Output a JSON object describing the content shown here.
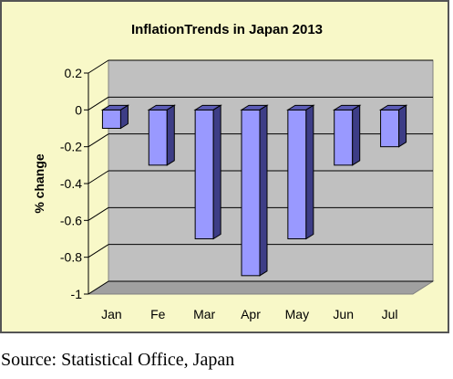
{
  "source_note": "Source: Statistical Office, Japan",
  "chart_data": {
    "type": "bar",
    "title": "InflationTrends in Japan 2013",
    "xlabel": "",
    "ylabel": "% change",
    "categories": [
      "Jan",
      "Fe",
      "Mar",
      "Apr",
      "May",
      "Jun",
      "Jul"
    ],
    "series": [
      {
        "values": [
          -0.1,
          -0.3,
          -0.7,
          -0.9,
          -0.7,
          -0.3,
          -0.2
        ]
      }
    ],
    "ylim": [
      -1,
      0.2
    ],
    "yticks": [
      0.2,
      0,
      -0.2,
      -0.4,
      -0.6,
      -0.8,
      -1
    ],
    "ytick_labels": [
      "0.2",
      "0",
      "-0.2",
      "-0.4",
      "-0.6",
      "-0.8",
      "-1"
    ],
    "grid": true,
    "legend": "none",
    "three_d": true,
    "colors": {
      "chart_background": "#f8f8c8",
      "plot_back": "#c0c0c0",
      "plot_floor": "#a0a0a0",
      "bar_front": "#9999ff",
      "bar_top": "#5b5bb6",
      "bar_side": "#3d3d86",
      "text": "#000000"
    }
  }
}
